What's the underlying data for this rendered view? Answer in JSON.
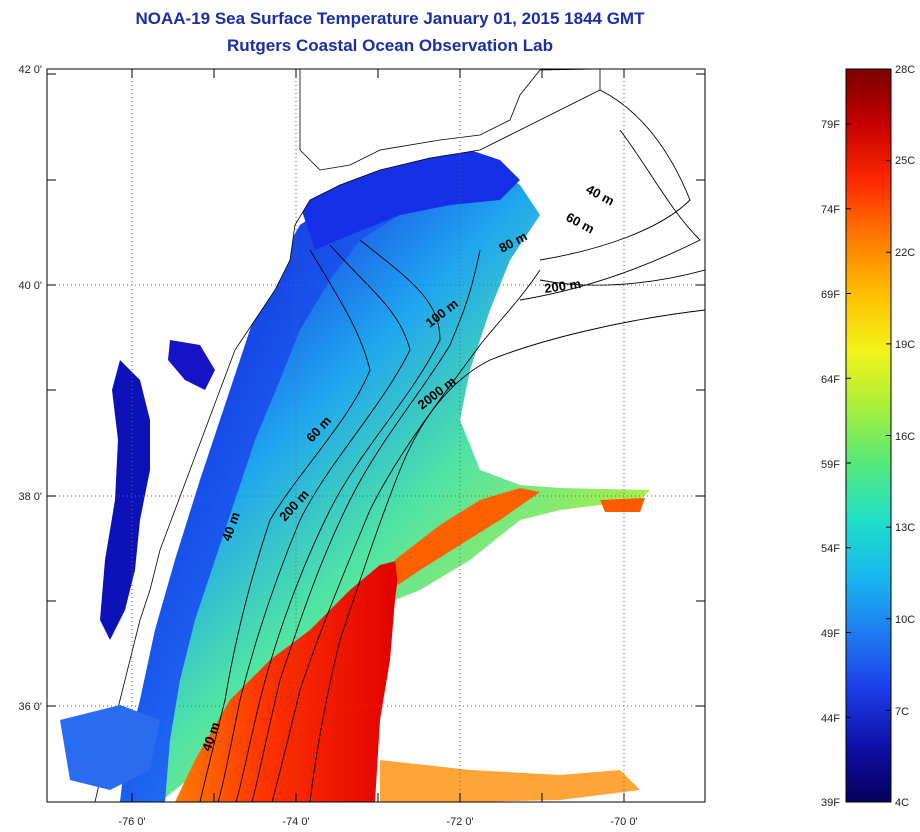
{
  "title": "NOAA-19 Sea Surface Temperature January 01, 2015 1844 GMT",
  "subtitle": "Rutgers Coastal Ocean Observation Lab",
  "map": {
    "lat_labels": [
      "42 0'",
      "40 0'",
      "38 0'",
      "36 0'"
    ],
    "lon_labels": [
      "-76 0'",
      "-74 0'",
      "-72 0'",
      "-70 0'"
    ],
    "contour_labels": [
      "40 m",
      "60 m",
      "80 m",
      "200 m",
      "100 m",
      "2000 m",
      "60 m",
      "200 m",
      "40 m",
      "40 m"
    ]
  },
  "colorbar": {
    "fahrenheit_labels": [
      "79F",
      "74F",
      "69F",
      "64F",
      "59F",
      "54F",
      "49F",
      "44F",
      "39F"
    ],
    "celsius_labels": [
      "28C",
      "25C",
      "22C",
      "19C",
      "16C",
      "13C",
      "10C",
      "7C",
      "4C"
    ],
    "colors": [
      "#7b0000",
      "#c80000",
      "#ff2a00",
      "#ff7a00",
      "#ffc000",
      "#f3f31a",
      "#a8f03a",
      "#55e87a",
      "#1fe0c8",
      "#18b8ef",
      "#1e7cf0",
      "#1c3ee8",
      "#1010a8",
      "#05005e"
    ]
  }
}
